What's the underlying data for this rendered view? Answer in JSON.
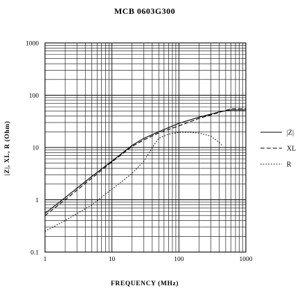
{
  "chart_data": {
    "type": "line",
    "title": "MCB 0603G300",
    "xlabel": "FREQUENCY (MHz)",
    "ylabel": "|Z|, XL, R (Ohm)",
    "xscale": "log",
    "yscale": "log",
    "xlim": [
      1,
      1000
    ],
    "ylim": [
      0.1,
      1000
    ],
    "x_ticks": [
      "1",
      "10",
      "100",
      "1000"
    ],
    "y_ticks": [
      "0.1",
      "1",
      "10",
      "100",
      "1000"
    ],
    "grid": true,
    "legend_position": "right",
    "series": [
      {
        "name": "|Z|",
        "style": "solid",
        "x": [
          1,
          2,
          5,
          10,
          20,
          30,
          50,
          100,
          200,
          400,
          600,
          1000
        ],
        "y": [
          0.55,
          1.1,
          2.8,
          5.5,
          11,
          15,
          20,
          29,
          38,
          48,
          52,
          52
        ]
      },
      {
        "name": "XL",
        "style": "dashed",
        "x": [
          1,
          2,
          5,
          10,
          20,
          30,
          50,
          100,
          200,
          400,
          600,
          1000
        ],
        "y": [
          0.5,
          1.0,
          2.6,
          5.3,
          10.5,
          14,
          19,
          26,
          36,
          47,
          55,
          55
        ]
      },
      {
        "name": "R",
        "style": "dotted",
        "x": [
          1,
          2,
          5,
          10,
          20,
          30,
          40,
          50,
          70,
          100,
          150,
          200,
          300,
          400,
          450
        ],
        "y": [
          0.25,
          0.4,
          0.8,
          1.6,
          3.2,
          5.5,
          10,
          15,
          18,
          19.5,
          19.5,
          19,
          16.5,
          12.5,
          10.5
        ]
      }
    ]
  }
}
